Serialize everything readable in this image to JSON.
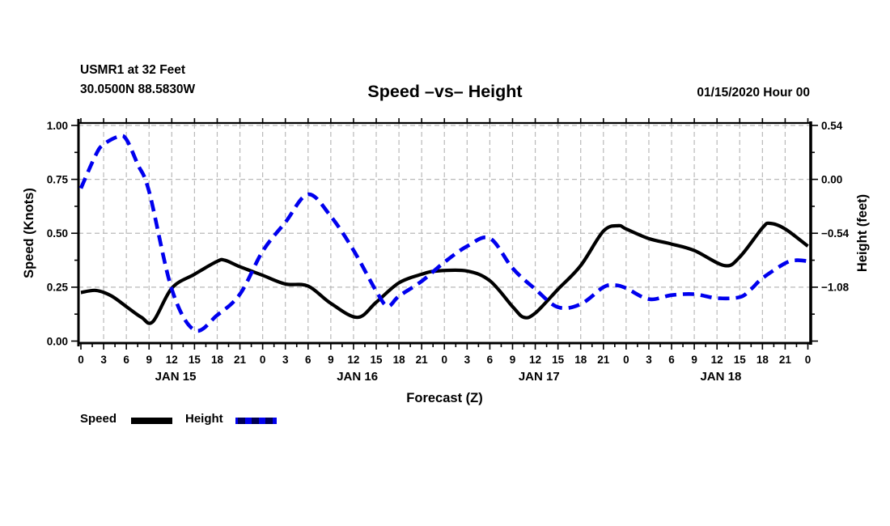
{
  "header": {
    "station_line1": "USMR1 at 32 Feet",
    "station_line2": "30.0500N 88.5830W",
    "title": "Speed –vs– Height",
    "datetime": "01/15/2020 Hour 00"
  },
  "legend": {
    "items": [
      {
        "label": "Speed",
        "color": "#000000",
        "style": "solid"
      },
      {
        "label": "Height",
        "color": "#0000ee",
        "style": "dashed"
      }
    ]
  },
  "chart_data": {
    "type": "line",
    "title": "Speed –vs– Height",
    "xlabel": "Forecast (Z)",
    "ylabel_left": "Speed (Knots)",
    "ylabel_right": "Height (feet)",
    "x_unit_hours_from": "01/15/2020 00Z",
    "xlim_hours": [
      0,
      96
    ],
    "x_major_tick_step_hours": 3,
    "x_minor_tick_step_hours": 1.5,
    "hour_tick_labels": [
      "0",
      "3",
      "6",
      "9",
      "12",
      "15",
      "18",
      "21"
    ],
    "final_hour_label": "0",
    "day_labels": [
      "JAN 15",
      "JAN 16",
      "JAN 17",
      "JAN 18"
    ],
    "ylim_left": [
      0.0,
      1.0
    ],
    "left_ticks": [
      {
        "label": "0.00",
        "v": 0.0
      },
      {
        "label": "0.25",
        "v": 0.25
      },
      {
        "label": "0.50",
        "v": 0.5
      },
      {
        "label": "0.75",
        "v": 0.75
      },
      {
        "label": "1.00",
        "v": 1.0
      }
    ],
    "right_ticks": [
      {
        "label": "−1.08",
        "v": 0.25
      },
      {
        "label": "−0.54",
        "v": 0.5
      },
      {
        "label": "0.00",
        "v": 0.75
      },
      {
        "label": "0.54",
        "v": 1.0
      }
    ],
    "right_axis_feet_per_left_unit": 2.16,
    "right_axis_zero_at_left_value": 0.75,
    "grid": {
      "on": true,
      "color": "#b9b9b9",
      "dashed": true
    },
    "legend_position": "bottom-left",
    "colors": {
      "speed": "#000000",
      "height": "#0000ee"
    },
    "series": [
      {
        "name": "Speed",
        "axis": "left",
        "units": "knots",
        "line": "solid",
        "color": "#000000",
        "points_hour_value": [
          [
            0,
            0.225
          ],
          [
            2,
            0.235
          ],
          [
            4,
            0.21
          ],
          [
            6,
            0.16
          ],
          [
            8,
            0.11
          ],
          [
            9.5,
            0.09
          ],
          [
            12,
            0.245
          ],
          [
            15,
            0.31
          ],
          [
            18,
            0.37
          ],
          [
            19,
            0.375
          ],
          [
            21,
            0.345
          ],
          [
            24,
            0.305
          ],
          [
            27,
            0.265
          ],
          [
            30,
            0.255
          ],
          [
            33,
            0.175
          ],
          [
            36.5,
            0.11
          ],
          [
            39,
            0.18
          ],
          [
            42,
            0.27
          ],
          [
            45,
            0.31
          ],
          [
            47,
            0.325
          ],
          [
            51,
            0.325
          ],
          [
            54,
            0.28
          ],
          [
            57,
            0.16
          ],
          [
            58.5,
            0.11
          ],
          [
            60,
            0.13
          ],
          [
            63,
            0.24
          ],
          [
            66,
            0.35
          ],
          [
            69,
            0.51
          ],
          [
            71,
            0.535
          ],
          [
            72,
            0.52
          ],
          [
            75,
            0.475
          ],
          [
            78,
            0.45
          ],
          [
            81,
            0.42
          ],
          [
            85,
            0.35
          ],
          [
            87,
            0.39
          ],
          [
            90,
            0.525
          ],
          [
            91,
            0.546
          ],
          [
            93,
            0.52
          ],
          [
            96,
            0.44
          ]
        ]
      },
      {
        "name": "Height",
        "axis": "right",
        "units": "feet",
        "line": "dashed",
        "color": "#0000ee",
        "points_hour_value": [
          [
            0,
            -0.09
          ],
          [
            2,
            0.25
          ],
          [
            3,
            0.35
          ],
          [
            5,
            0.43
          ],
          [
            6,
            0.4
          ],
          [
            7.5,
            0.15
          ],
          [
            9,
            -0.12
          ],
          [
            12,
            -1.1
          ],
          [
            15,
            -1.51
          ],
          [
            18,
            -1.36
          ],
          [
            21,
            -1.15
          ],
          [
            24,
            -0.72
          ],
          [
            27,
            -0.43
          ],
          [
            30,
            -0.15
          ],
          [
            33,
            -0.37
          ],
          [
            36,
            -0.71
          ],
          [
            39,
            -1.12
          ],
          [
            40.5,
            -1.27
          ],
          [
            42,
            -1.17
          ],
          [
            45,
            -1.02
          ],
          [
            48,
            -0.83
          ],
          [
            51,
            -0.67
          ],
          [
            54,
            -0.59
          ],
          [
            57,
            -0.89
          ],
          [
            60,
            -1.1
          ],
          [
            63,
            -1.28
          ],
          [
            66,
            -1.25
          ],
          [
            69,
            -1.08
          ],
          [
            70.5,
            -1.06
          ],
          [
            72,
            -1.09
          ],
          [
            75,
            -1.2
          ],
          [
            78,
            -1.16
          ],
          [
            81,
            -1.15
          ],
          [
            84,
            -1.19
          ],
          [
            87,
            -1.18
          ],
          [
            88.5,
            -1.1
          ],
          [
            90,
            -0.99
          ],
          [
            93,
            -0.84
          ],
          [
            94.5,
            -0.81
          ],
          [
            96,
            -0.82
          ]
        ]
      }
    ]
  }
}
